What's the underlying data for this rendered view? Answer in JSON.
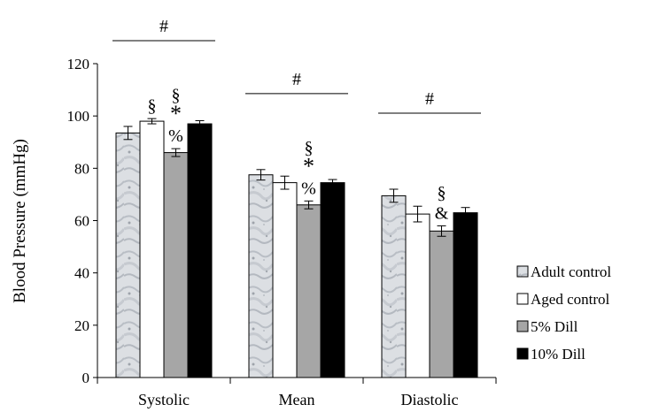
{
  "chart_data": {
    "type": "bar",
    "title": "",
    "xlabel": "",
    "ylabel": "Blood Pressure (mmHg)",
    "ylim": [
      0,
      120
    ],
    "yticks": [
      0,
      20,
      40,
      60,
      80,
      100,
      120
    ],
    "categories": [
      "Systolic",
      "Mean",
      "Diastolic"
    ],
    "legend_position": "right",
    "series": [
      {
        "name": "Adult control",
        "fill": "marble",
        "values": [
          93.5,
          77.5,
          69.5
        ],
        "errors": [
          2.5,
          2.0,
          2.5
        ]
      },
      {
        "name": "Aged control",
        "fill": "#ffffff",
        "values": [
          98.0,
          74.5,
          62.5
        ],
        "errors": [
          1.0,
          2.5,
          3.0
        ]
      },
      {
        "name": "5% Dill",
        "fill": "#a6a6a6",
        "values": [
          86.0,
          66.0,
          56.0
        ],
        "errors": [
          1.5,
          1.5,
          2.0
        ]
      },
      {
        "name": "10% Dill",
        "fill": "#000000",
        "values": [
          97.0,
          74.5,
          63.0
        ],
        "errors": [
          1.2,
          1.2,
          2.0
        ]
      }
    ],
    "annotations": [
      {
        "category": 0,
        "series": 1,
        "lines": [
          "§"
        ]
      },
      {
        "category": 0,
        "series": 2,
        "lines": [
          "§",
          "*",
          "%"
        ]
      },
      {
        "category": 1,
        "series": 2,
        "lines": [
          "§",
          "*",
          "%"
        ]
      },
      {
        "category": 2,
        "series": 2,
        "lines": [
          "§",
          "&"
        ]
      }
    ],
    "group_markers": [
      {
        "category": 0,
        "text": "#"
      },
      {
        "category": 1,
        "text": "#"
      },
      {
        "category": 2,
        "text": "#"
      }
    ]
  }
}
